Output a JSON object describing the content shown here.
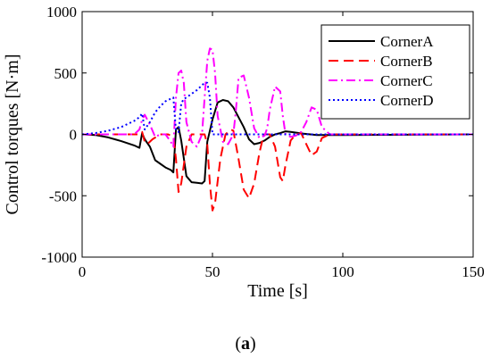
{
  "caption": {
    "prefix": "(",
    "letter": "a",
    "suffix": ")"
  },
  "chart_data": {
    "type": "line",
    "title": "",
    "xlabel": "Time [s]",
    "ylabel": "Control torques [N·m]",
    "xlim": [
      0,
      150
    ],
    "ylim": [
      -1000,
      1000
    ],
    "xticks": [
      0,
      50,
      100,
      150
    ],
    "yticks": [
      -1000,
      -500,
      0,
      500,
      1000
    ],
    "grid": false,
    "legend_position": "top-right",
    "series": [
      {
        "name": "CornerA",
        "color": "#000000",
        "dash": "solid",
        "x": [
          0,
          5,
          10,
          15,
          20,
          22,
          23,
          24,
          26,
          28,
          30,
          32,
          34,
          35,
          36,
          37,
          38,
          40,
          42,
          44,
          46,
          47,
          48,
          50,
          52,
          54,
          56,
          58,
          60,
          62,
          64,
          66,
          68,
          70,
          72,
          74,
          76,
          78,
          80,
          85,
          90,
          95,
          100,
          150
        ],
        "y": [
          0,
          -5,
          -25,
          -55,
          -90,
          -110,
          10,
          -40,
          -100,
          -210,
          -240,
          -270,
          -290,
          -310,
          40,
          60,
          -50,
          -340,
          -390,
          -395,
          -400,
          -380,
          -60,
          120,
          260,
          280,
          270,
          220,
          140,
          60,
          -40,
          -80,
          -70,
          -50,
          -20,
          0,
          10,
          25,
          20,
          5,
          -5,
          -5,
          -5,
          0
        ]
      },
      {
        "name": "CornerB",
        "color": "#ff0000",
        "dash": "long-dash",
        "x": [
          0,
          20,
          22,
          23,
          24,
          25,
          27,
          30,
          33,
          35,
          36,
          37,
          38,
          40,
          42,
          45,
          47,
          48,
          49,
          50,
          51,
          53,
          55,
          57,
          58,
          60,
          62,
          64,
          66,
          68,
          69,
          70,
          72,
          74,
          76,
          77,
          78,
          80,
          82,
          84,
          86,
          88,
          90,
          92,
          95,
          100,
          150
        ],
        "y": [
          0,
          0,
          0,
          20,
          -60,
          -80,
          -40,
          0,
          0,
          -20,
          -200,
          -470,
          -400,
          -100,
          0,
          0,
          0,
          -80,
          -400,
          -620,
          -560,
          -200,
          0,
          40,
          30,
          -200,
          -450,
          -520,
          -400,
          -150,
          -60,
          0,
          0,
          -100,
          -350,
          -380,
          -250,
          -50,
          0,
          10,
          -80,
          -170,
          -140,
          -30,
          0,
          0,
          0
        ]
      },
      {
        "name": "CornerC",
        "color": "#ff00ff",
        "dash": "dash-dot",
        "x": [
          0,
          20,
          22,
          23,
          24,
          26,
          28,
          30,
          32,
          34,
          35,
          36,
          37,
          38,
          39,
          40,
          42,
          44,
          46,
          47,
          48,
          49,
          50,
          51,
          52,
          54,
          56,
          58,
          59,
          60,
          62,
          64,
          66,
          68,
          70,
          71,
          72,
          74,
          76,
          77,
          78,
          80,
          82,
          84,
          86,
          88,
          90,
          92,
          95,
          100,
          150
        ],
        "y": [
          0,
          0,
          40,
          120,
          160,
          80,
          -20,
          0,
          0,
          -60,
          -100,
          300,
          500,
          520,
          420,
          100,
          -60,
          -100,
          0,
          300,
          600,
          700,
          690,
          500,
          150,
          -60,
          -80,
          0,
          200,
          460,
          480,
          300,
          50,
          -30,
          -10,
          50,
          200,
          390,
          350,
          150,
          0,
          -20,
          -10,
          20,
          100,
          220,
          200,
          60,
          0,
          0,
          0
        ]
      },
      {
        "name": "CornerD",
        "color": "#0000ff",
        "dash": "dotted",
        "x": [
          0,
          5,
          10,
          15,
          20,
          22,
          23,
          24,
          25,
          26,
          28,
          30,
          32,
          34,
          35,
          36,
          37,
          38,
          39,
          40,
          42,
          44,
          46,
          47,
          48,
          49,
          50,
          52,
          55,
          60,
          70,
          80,
          90,
          100,
          150
        ],
        "y": [
          0,
          10,
          30,
          60,
          110,
          140,
          170,
          40,
          70,
          100,
          180,
          230,
          270,
          290,
          300,
          30,
          20,
          250,
          290,
          300,
          330,
          360,
          400,
          420,
          420,
          300,
          0,
          0,
          0,
          0,
          0,
          0,
          0,
          0,
          0
        ]
      }
    ]
  }
}
